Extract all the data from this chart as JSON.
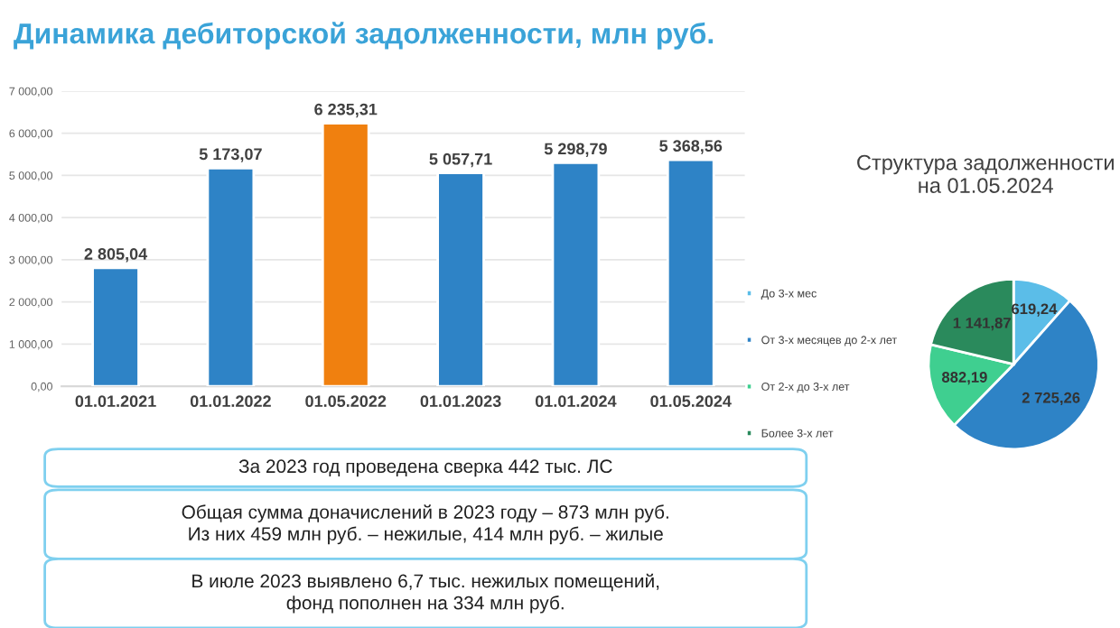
{
  "chart_data": [
    {
      "type": "bar",
      "title": "Динамика дебиторской задолженности, млн руб.",
      "categories": [
        "01.01.2021",
        "01.01.2022",
        "01.05.2022",
        "01.01.2023",
        "01.01.2024",
        "01.05.2024"
      ],
      "values": [
        2805.04,
        5173.07,
        6235.31,
        5057.71,
        5298.79,
        5368.56
      ],
      "colors": [
        "#2e83c6",
        "#2e83c6",
        "#f0800f",
        "#2e83c6",
        "#2e83c6",
        "#2e83c6"
      ],
      "value_labels": [
        "2 805,04",
        "5 173,07",
        "6 235,31",
        "5 057,71",
        "5 298,79",
        "5 368,56"
      ],
      "ylim": [
        0,
        7000
      ],
      "yticks": [
        {
          "value": 0,
          "label": "0,00"
        },
        {
          "value": 1000,
          "label": "1 000,00"
        },
        {
          "value": 2000,
          "label": "2 000,00"
        },
        {
          "value": 3000,
          "label": "3 000,00"
        },
        {
          "value": 4000,
          "label": "4 000,00"
        },
        {
          "value": 5000,
          "label": "5 000,00"
        },
        {
          "value": 6000,
          "label": "6 000,00"
        },
        {
          "value": 7000,
          "label": "7 000,00"
        }
      ],
      "grid": "y",
      "legend": false,
      "annotations": [
        "За 2023 год проведена сверка 442 тыс. ЛС",
        "Общая сумма доначислений в 2023 году – 873 млн руб.\nИз них 459 млн руб. – нежилые, 414 млн руб. – жилые",
        "В июле 2023 выявлено 6,7 тыс. нежилых помещений,\nфонд пополнен на 334 млн руб."
      ]
    },
    {
      "type": "pie",
      "title": "Структура задолженности\nна 01.05.2024",
      "categories": [
        "До 3-х мес",
        "От 3-х месяцев до 2-х лет",
        "От 2-х до 3-х лет",
        "Более 3-х лет"
      ],
      "values": [
        619.24,
        2725.26,
        882.19,
        1141.87
      ],
      "colors": [
        "#5bbde8",
        "#2e83c6",
        "#3fcf90",
        "#2a8a5c"
      ],
      "value_labels": [
        "619,24",
        "2 725,26",
        "882,19",
        "1 141,87"
      ],
      "legend": "left"
    }
  ]
}
